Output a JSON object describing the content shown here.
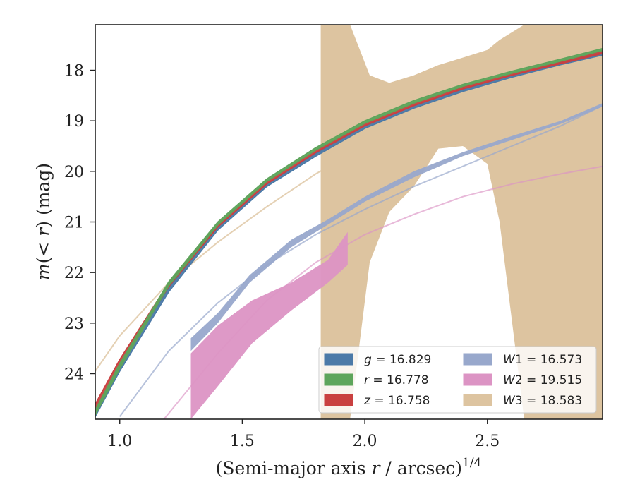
{
  "chart_data": {
    "type": "line",
    "xlabel": "(Semi-major axis r / arcsec)^1/4",
    "ylabel": "m(< r) (mag)",
    "xlim": [
      0.9,
      2.97
    ],
    "ylim": [
      24.9,
      17.1
    ],
    "y_inverted": true,
    "x_ticks": [
      1.0,
      1.5,
      2.0,
      2.5
    ],
    "x_tick_labels": [
      "1.0",
      "1.5",
      "2.0",
      "2.5"
    ],
    "y_ticks": [
      18,
      19,
      20,
      21,
      22,
      23,
      24
    ],
    "y_tick_labels": [
      "18",
      "19",
      "20",
      "21",
      "22",
      "23",
      "24"
    ],
    "grid": false,
    "legend_position": "lower-right",
    "legend_columns": 2,
    "colors": {
      "g": "#4c7aa8",
      "r": "#5ea55c",
      "z": "#c94040",
      "W1": "#98a8cc",
      "W2": "#dc94c4",
      "W3": "#ddc4a0"
    },
    "series": [
      {
        "key": "g",
        "name": "g = 16.829",
        "name_sym": "g",
        "name_val": "16.829",
        "kind": "band",
        "x": [
          0.9,
          1.0,
          1.2,
          1.4,
          1.6,
          1.8,
          2.0,
          2.2,
          2.4,
          2.6,
          2.8,
          2.97
        ],
        "y_upper": [
          24.75,
          23.85,
          22.3,
          21.1,
          20.25,
          19.65,
          19.1,
          18.7,
          18.38,
          18.1,
          17.85,
          17.65
        ],
        "y_lower": [
          24.85,
          23.95,
          22.38,
          21.16,
          20.3,
          19.7,
          19.15,
          18.75,
          18.42,
          18.14,
          17.89,
          17.7
        ]
      },
      {
        "key": "r",
        "name": "r = 16.778",
        "name_sym": "r",
        "name_val": "16.778",
        "kind": "band",
        "x": [
          0.9,
          1.0,
          1.2,
          1.4,
          1.6,
          1.8,
          2.0,
          2.2,
          2.4,
          2.6,
          2.8,
          2.97
        ],
        "y_upper": [
          24.72,
          23.8,
          22.18,
          21.0,
          20.15,
          19.53,
          19.0,
          18.6,
          18.28,
          18.02,
          17.78,
          17.57
        ],
        "y_lower": [
          24.82,
          23.9,
          22.26,
          21.06,
          20.2,
          19.58,
          19.05,
          18.65,
          18.32,
          18.06,
          17.82,
          17.61
        ]
      },
      {
        "key": "z",
        "name": "z = 16.758",
        "name_sym": "z",
        "name_val": "16.758",
        "kind": "band",
        "x": [
          0.9,
          1.0,
          1.2,
          1.4,
          1.6,
          1.8,
          2.0,
          2.2,
          2.4,
          2.6,
          2.8,
          2.97
        ],
        "y_upper": [
          24.6,
          23.72,
          22.2,
          21.04,
          20.2,
          19.58,
          19.05,
          18.65,
          18.33,
          18.06,
          17.83,
          17.62
        ],
        "y_lower": [
          24.72,
          23.82,
          22.28,
          21.1,
          20.25,
          19.63,
          19.1,
          18.7,
          18.37,
          18.1,
          17.87,
          17.67
        ]
      },
      {
        "key": "W1",
        "name": "W1 = 16.573",
        "name_sym": "W1",
        "name_val": "16.573",
        "kind": "band",
        "x": [
          1.29,
          1.4,
          1.53,
          1.7,
          1.85,
          2.0,
          2.2,
          2.4,
          2.6,
          2.8,
          2.97
        ],
        "y_upper": [
          23.3,
          22.8,
          22.05,
          21.35,
          20.95,
          20.5,
          20.0,
          19.62,
          19.3,
          19.0,
          18.65
        ],
        "y_lower": [
          23.55,
          23.0,
          22.2,
          21.5,
          21.05,
          20.6,
          20.12,
          19.7,
          19.38,
          19.06,
          18.72
        ]
      },
      {
        "key": "W2",
        "name": "W2 = 19.515",
        "name_sym": "W2",
        "name_val": "19.515",
        "kind": "band",
        "x": [
          1.29,
          1.4,
          1.54,
          1.7,
          1.85,
          1.93
        ],
        "y_upper": [
          23.6,
          23.05,
          22.55,
          22.2,
          21.75,
          21.2
        ],
        "y_lower": [
          24.9,
          24.25,
          23.4,
          22.75,
          22.2,
          21.85
        ]
      },
      {
        "key": "W3",
        "name": "W3 = 18.583",
        "name_sym": "W3",
        "name_val": "18.583",
        "kind": "band",
        "x": [
          1.82,
          1.94,
          2.02,
          2.1,
          2.2,
          2.3,
          2.4,
          2.5,
          2.55,
          2.65,
          2.78,
          2.97
        ],
        "y_upper": [
          17.1,
          17.1,
          18.1,
          18.25,
          18.1,
          17.9,
          17.75,
          17.6,
          17.4,
          17.1,
          17.1,
          17.1
        ],
        "y_lower": [
          24.9,
          24.9,
          21.8,
          20.8,
          20.3,
          19.55,
          19.5,
          19.85,
          21.0,
          24.9,
          24.9,
          24.9
        ]
      },
      {
        "key": "W1_model",
        "kind": "line",
        "x": [
          1.0,
          1.2,
          1.4,
          1.6,
          1.8,
          2.0,
          2.2,
          2.4,
          2.6,
          2.8,
          2.97
        ],
        "y": [
          24.85,
          23.55,
          22.6,
          21.85,
          21.25,
          20.75,
          20.3,
          19.9,
          19.5,
          19.1,
          18.7
        ]
      },
      {
        "key": "W2_model",
        "kind": "line",
        "x": [
          1.18,
          1.4,
          1.6,
          1.8,
          2.0,
          2.2,
          2.4,
          2.6,
          2.8,
          2.97
        ],
        "y": [
          24.9,
          23.6,
          22.55,
          21.8,
          21.25,
          20.85,
          20.5,
          20.25,
          20.05,
          19.9
        ]
      },
      {
        "key": "W3_model",
        "kind": "line",
        "x": [
          0.9,
          1.0,
          1.2,
          1.4,
          1.6,
          1.8,
          2.0,
          2.2,
          2.4,
          2.6,
          2.8,
          2.97
        ],
        "y": [
          23.95,
          23.25,
          22.2,
          21.4,
          20.7,
          20.05,
          19.5,
          19.0,
          18.6,
          18.55,
          18.55,
          18.55
        ]
      }
    ]
  }
}
